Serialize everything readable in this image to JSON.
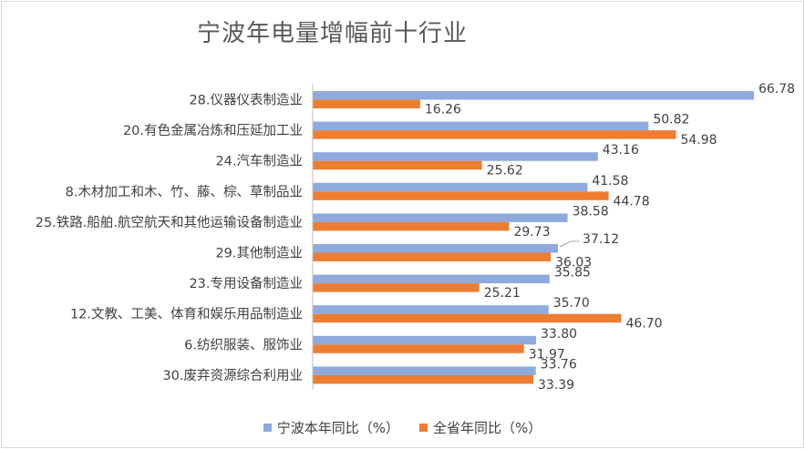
{
  "chart_data": {
    "type": "bar",
    "orientation": "horizontal",
    "title": "宁波年电量增幅前十行业",
    "categories": [
      "28.仪器仪表制造业",
      "20.有色金属冶炼和压延加工业",
      "24.汽车制造业",
      "8.木材加工和木、竹、藤、棕、草制品业",
      "25.铁路.船舶.航空航天和其他运输设备制造业",
      "29.其他制造业",
      "23.专用设备制造业",
      "12.文教、工美、体育和娱乐用品制造业",
      "6.纺织服装、服饰业",
      "30.废弃资源综合利用业"
    ],
    "series": [
      {
        "name": "宁波本年同比（%）",
        "color": "#8faadc",
        "values": [
          66.78,
          50.82,
          43.16,
          41.58,
          38.58,
          37.12,
          35.85,
          35.7,
          33.8,
          33.76
        ],
        "labels": [
          "66.78",
          "50.82",
          "43.16",
          "41.58",
          "38.58",
          "37.12",
          "35.85",
          "35.70",
          "33.80",
          "33.76"
        ]
      },
      {
        "name": "全省年同比（%）",
        "color": "#ed7d31",
        "values": [
          16.26,
          54.98,
          25.62,
          44.78,
          29.73,
          36.03,
          25.21,
          46.7,
          31.97,
          33.39
        ],
        "labels": [
          "16.26",
          "54.98",
          "25.62",
          "44.78",
          "29.73",
          "36.03",
          "25.21",
          "46.70",
          "31.97",
          "33.39"
        ]
      }
    ],
    "xlim": [
      0,
      70
    ],
    "grid": false,
    "legend_position": "bottom"
  }
}
